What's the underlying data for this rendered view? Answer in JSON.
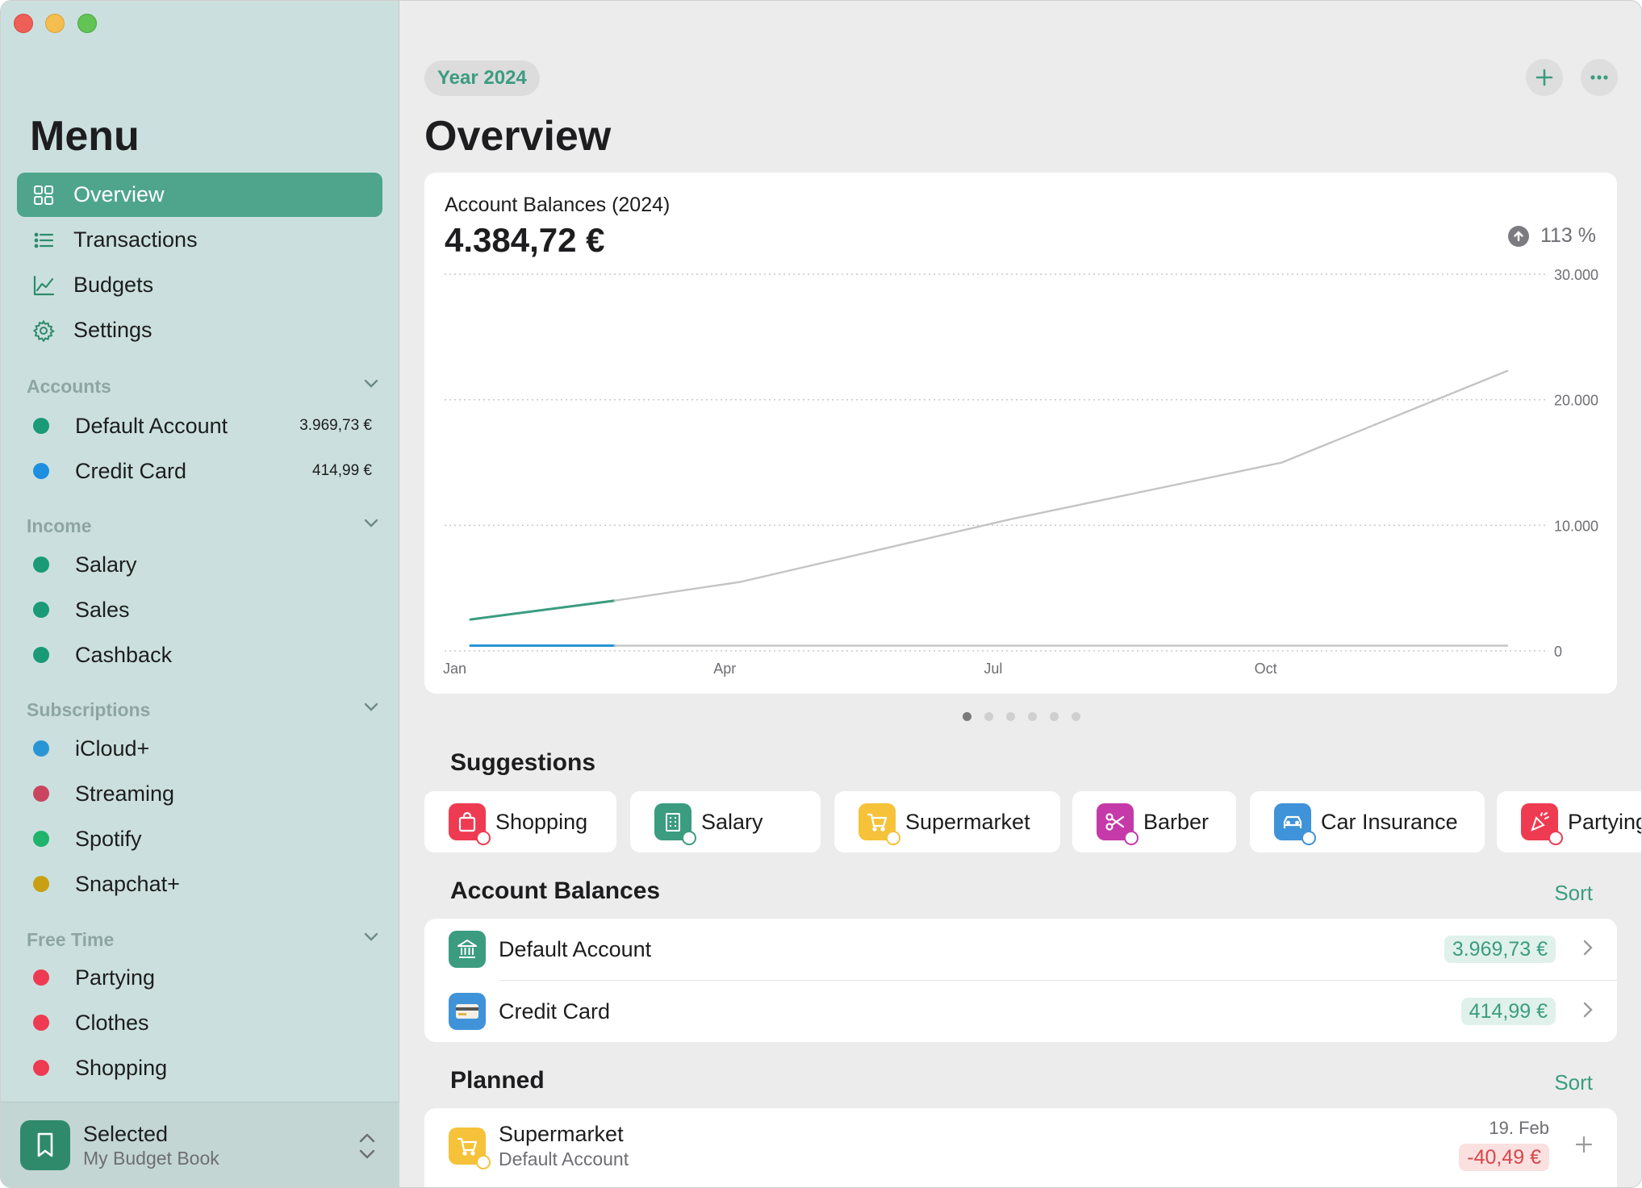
{
  "sidebar": {
    "title": "Menu",
    "nav": [
      {
        "label": "Overview",
        "icon": "grid-icon",
        "active": true
      },
      {
        "label": "Transactions",
        "icon": "list-icon",
        "active": false
      },
      {
        "label": "Budgets",
        "icon": "chart-line-icon",
        "active": false
      },
      {
        "label": "Settings",
        "icon": "gear-icon",
        "active": false
      }
    ],
    "sections": {
      "accounts": {
        "label": "Accounts",
        "items": [
          {
            "name": "Default Account",
            "balance": "3.969,73 €",
            "color": "#1a9a77"
          },
          {
            "name": "Credit Card",
            "balance": "414,99 €",
            "color": "#1d8fde"
          }
        ]
      },
      "income": {
        "label": "Income",
        "items": [
          {
            "name": "Salary",
            "color": "#1a9a77"
          },
          {
            "name": "Sales",
            "color": "#1a9a77"
          },
          {
            "name": "Cashback",
            "color": "#1a9a77"
          }
        ]
      },
      "subscriptions": {
        "label": "Subscriptions",
        "items": [
          {
            "name": "iCloud+",
            "color": "#2a95d5"
          },
          {
            "name": "Streaming",
            "color": "#c9455f"
          },
          {
            "name": "Spotify",
            "color": "#20b36b"
          },
          {
            "name": "Snapchat+",
            "color": "#c9a014"
          }
        ]
      },
      "free_time": {
        "label": "Free Time",
        "items": [
          {
            "name": "Partying",
            "color": "#ee3b52"
          },
          {
            "name": "Clothes",
            "color": "#ee3b52"
          },
          {
            "name": "Shopping",
            "color": "#ee3b52"
          }
        ]
      }
    },
    "footer": {
      "selected_label": "Selected",
      "book_name": "My Budget Book"
    }
  },
  "header": {
    "year": "Year 2024",
    "title": "Overview"
  },
  "chart_card": {
    "title": "Account Balances (2024)",
    "total": "4.384,72 €",
    "change": "113 %"
  },
  "chart_data": {
    "type": "line",
    "x_ticks": [
      "Jan",
      "Apr",
      "Jul",
      "Oct"
    ],
    "y_ticks": [
      "30.000",
      "20.000",
      "10.000",
      "0"
    ],
    "ylim": [
      0,
      30000
    ],
    "series": [
      {
        "color": "#3b9c80",
        "actual": true,
        "points": [
          [
            0,
            2500
          ],
          [
            1.6,
            4000
          ]
        ]
      },
      {
        "color": "#c4c4c4",
        "actual": false,
        "points": [
          [
            1.6,
            4000
          ],
          [
            3,
            5500
          ],
          [
            6,
            10500
          ],
          [
            9,
            15000
          ],
          [
            11.5,
            22300
          ]
        ]
      },
      {
        "color": "#2a95d5",
        "actual": true,
        "points": [
          [
            0,
            415
          ],
          [
            1.6,
            415
          ]
        ]
      },
      {
        "color": "#c4c4c4",
        "actual": false,
        "points": [
          [
            1.6,
            415
          ],
          [
            11.5,
            415
          ]
        ]
      }
    ],
    "grid": true
  },
  "pager": {
    "count": 6,
    "active": 0
  },
  "suggestions": {
    "title": "Suggestions",
    "items": [
      {
        "label": "Shopping",
        "icon": "shopping-bag-icon",
        "color": "#ee3b52"
      },
      {
        "label": "Salary",
        "icon": "building-icon",
        "color": "#3b9c80"
      },
      {
        "label": "Supermarket",
        "icon": "cart-icon",
        "color": "#f5c23a"
      },
      {
        "label": "Barber",
        "icon": "scissors-icon",
        "color": "#c53aa8"
      },
      {
        "label": "Car Insurance",
        "icon": "car-icon",
        "color": "#3f93d8"
      },
      {
        "label": "Partying",
        "icon": "party-icon",
        "color": "#ee3b52"
      }
    ]
  },
  "account_balances": {
    "title": "Account Balances",
    "sort_label": "Sort",
    "rows": [
      {
        "name": "Default Account",
        "amount": "3.969,73 €",
        "icon": "bank-icon",
        "color": "#3b9c80"
      },
      {
        "name": "Credit Card",
        "amount": "414,99 €",
        "icon": "credit-card-icon",
        "color": "#3f93d8"
      }
    ]
  },
  "planned": {
    "title": "Planned",
    "sort_label": "Sort",
    "rows": [
      {
        "name": "Supermarket",
        "account": "Default Account",
        "date": "19. Feb",
        "amount": "-40,49 €",
        "icon": "cart-icon",
        "color": "#f5c23a"
      }
    ]
  }
}
